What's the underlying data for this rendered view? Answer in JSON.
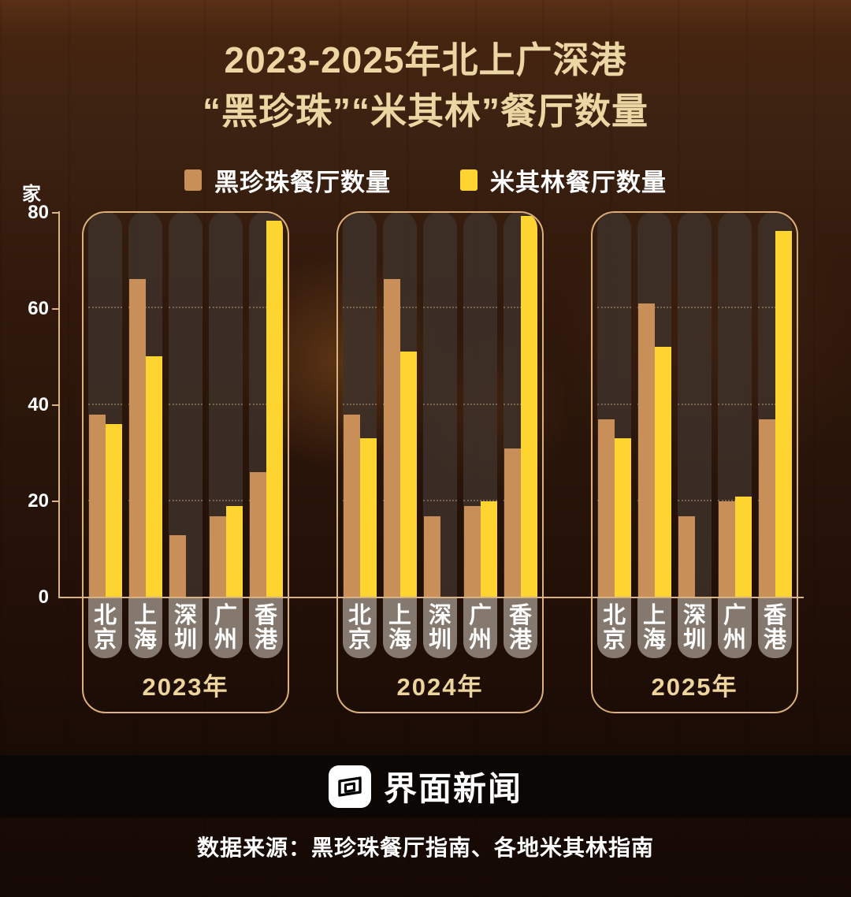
{
  "title": {
    "line1": "2023-2025年北上广深港",
    "line2": "“黑珍珠”“米其林”餐厅数量"
  },
  "unit_label": "家",
  "y_axis": {
    "ticks": [
      80,
      60,
      40,
      20,
      0
    ],
    "max": 80
  },
  "legend": [
    {
      "label": "黑珍珠餐厅数量",
      "color": "#c98f58"
    },
    {
      "label": "米其林餐厅数量",
      "color": "#fed530"
    }
  ],
  "chart_data": {
    "type": "bar",
    "title": "2023-2025年北上广深港“黑珍珠”“米其林”餐厅数量",
    "ylabel": "家",
    "ylim": [
      0,
      80
    ],
    "grid": "dotted horizontal at 20/40/60",
    "legend_position": "top",
    "categories": [
      "北京",
      "上海",
      "深圳",
      "广州",
      "香港"
    ],
    "groups": [
      {
        "year": "2023年",
        "series": [
          {
            "name": "黑珍珠餐厅数量",
            "values": [
              38,
              66,
              13,
              17,
              26
            ]
          },
          {
            "name": "米其林餐厅数量",
            "values": [
              36,
              50,
              null,
              19,
              78
            ]
          }
        ]
      },
      {
        "year": "2024年",
        "series": [
          {
            "name": "黑珍珠餐厅数量",
            "values": [
              38,
              66,
              17,
              19,
              31
            ]
          },
          {
            "name": "米其林餐厅数量",
            "values": [
              33,
              51,
              null,
              20,
              79
            ]
          }
        ]
      },
      {
        "year": "2025年",
        "series": [
          {
            "name": "黑珍珠餐厅数量",
            "values": [
              37,
              61,
              17,
              20,
              37
            ]
          },
          {
            "name": "米其林餐厅数量",
            "values": [
              33,
              52,
              null,
              21,
              76
            ]
          }
        ]
      }
    ]
  },
  "footer": {
    "brand": "界面新闻",
    "source": "数据来源：黑珍珠餐厅指南、各地米其林指南"
  },
  "colors": {
    "title_text": "#ecd7a4",
    "year_text": "#ecd49c",
    "bar_black_pearl": "#c98f58",
    "bar_michelin": "#fed530",
    "pill_bg": "rgba(62,50,43,0.82)",
    "tab_bg": "rgba(142,129,119,0.92)",
    "frame_border": "#ddb07a",
    "axis_line": "#d9b384"
  }
}
